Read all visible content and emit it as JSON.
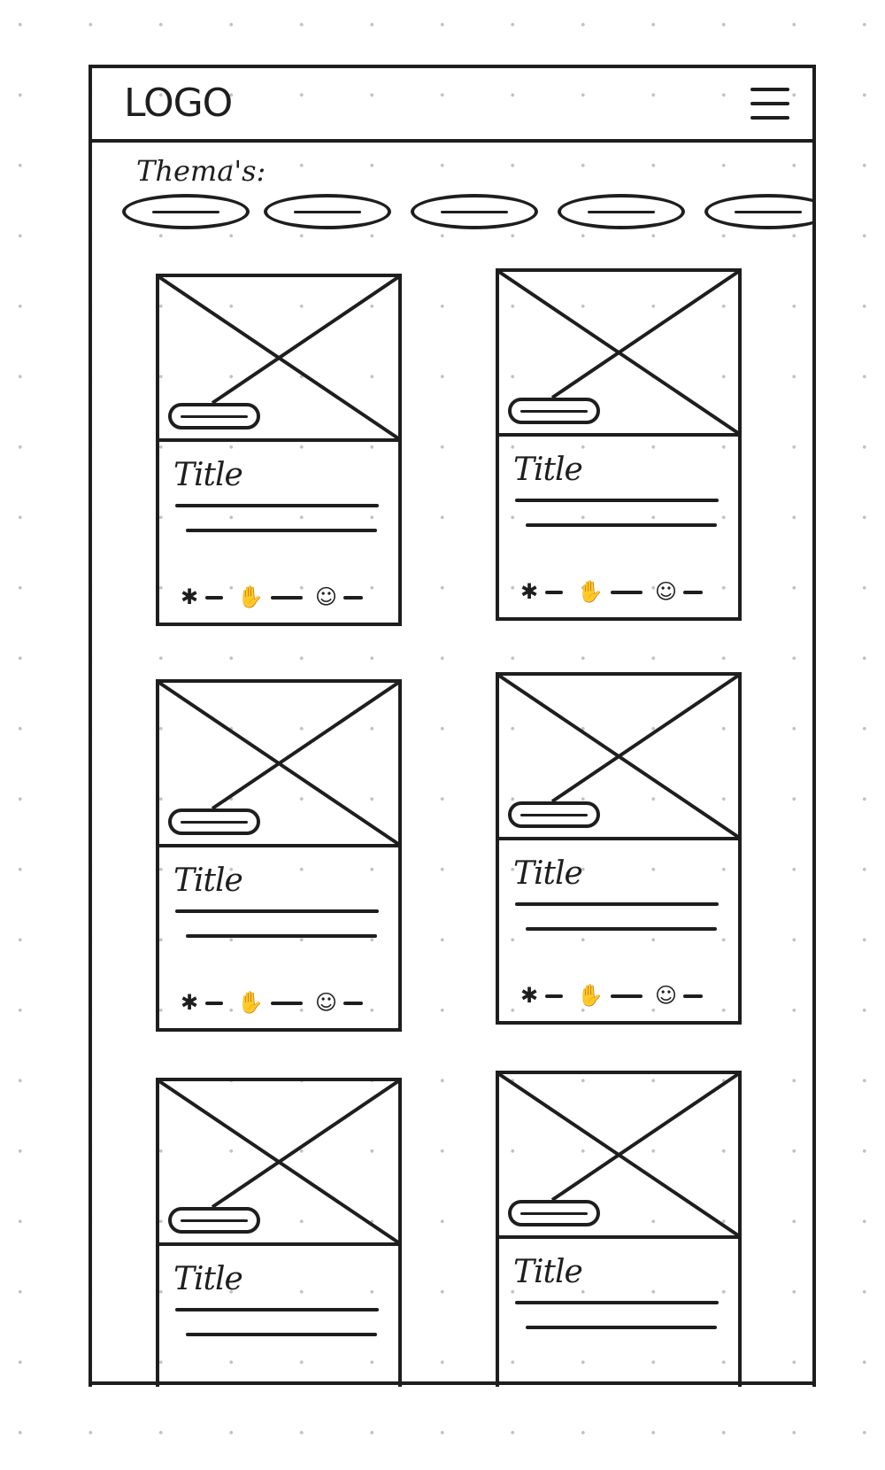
{
  "header": {
    "logo": "LOGO",
    "menu_icon": "hamburger-menu-icon"
  },
  "themes": {
    "label": "Thema's:",
    "chip_count": 5
  },
  "cards": [
    {
      "title": "Title",
      "icons": [
        "star-icon",
        "hand-icon",
        "smiley-icon"
      ]
    },
    {
      "title": "Title",
      "icons": [
        "star-icon",
        "hand-icon",
        "smiley-icon"
      ]
    },
    {
      "title": "Title",
      "icons": [
        "star-icon",
        "hand-icon",
        "smiley-icon"
      ]
    },
    {
      "title": "Title",
      "icons": [
        "star-icon",
        "hand-icon",
        "smiley-icon"
      ]
    },
    {
      "title": "Title",
      "icons": []
    },
    {
      "title": "Title",
      "icons": []
    }
  ],
  "colors": {
    "ink": "#1e1e1e",
    "dots": "#c2c2c2",
    "background": "#ffffff"
  }
}
